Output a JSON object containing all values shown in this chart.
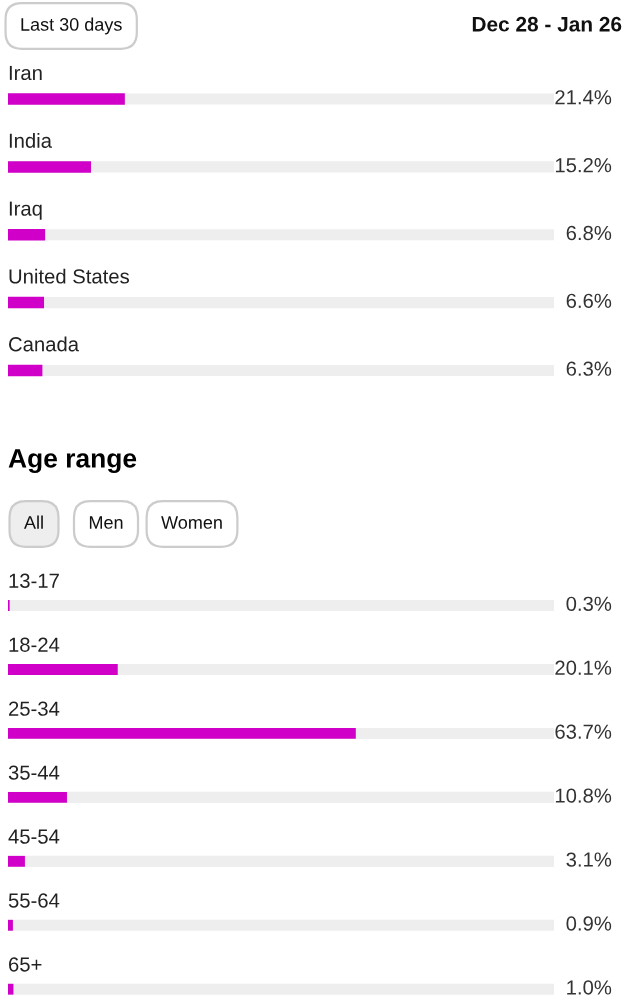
{
  "chart_data": [
    {
      "type": "bar",
      "orientation": "horizontal",
      "categories": [
        "Iran",
        "India",
        "Iraq",
        "United States",
        "Canada"
      ],
      "values": [
        21.4,
        15.2,
        6.8,
        6.6,
        6.3
      ],
      "value_labels": [
        "21.4%",
        "15.2%",
        "6.8%",
        "6.6%",
        "6.3%"
      ],
      "color": "#d100c9",
      "xlim": [
        0,
        100
      ],
      "annotations": [
        "Last 30 days",
        "Dec 28 - Jan 26"
      ]
    },
    {
      "type": "bar",
      "orientation": "horizontal",
      "title": "Age range",
      "categories": [
        "13-17",
        "18-24",
        "25-34",
        "35-44",
        "45-54",
        "55-64",
        "65+"
      ],
      "values": [
        0.3,
        20.1,
        63.7,
        10.8,
        3.1,
        0.9,
        1.0
      ],
      "value_labels": [
        "0.3%",
        "20.1%",
        "63.7%",
        "10.8%",
        "3.1%",
        "0.9%",
        "1.0%"
      ],
      "color": "#d100c9",
      "xlim": [
        0,
        100
      ],
      "annotations": [
        "All",
        "Men",
        "Women"
      ]
    }
  ]
}
